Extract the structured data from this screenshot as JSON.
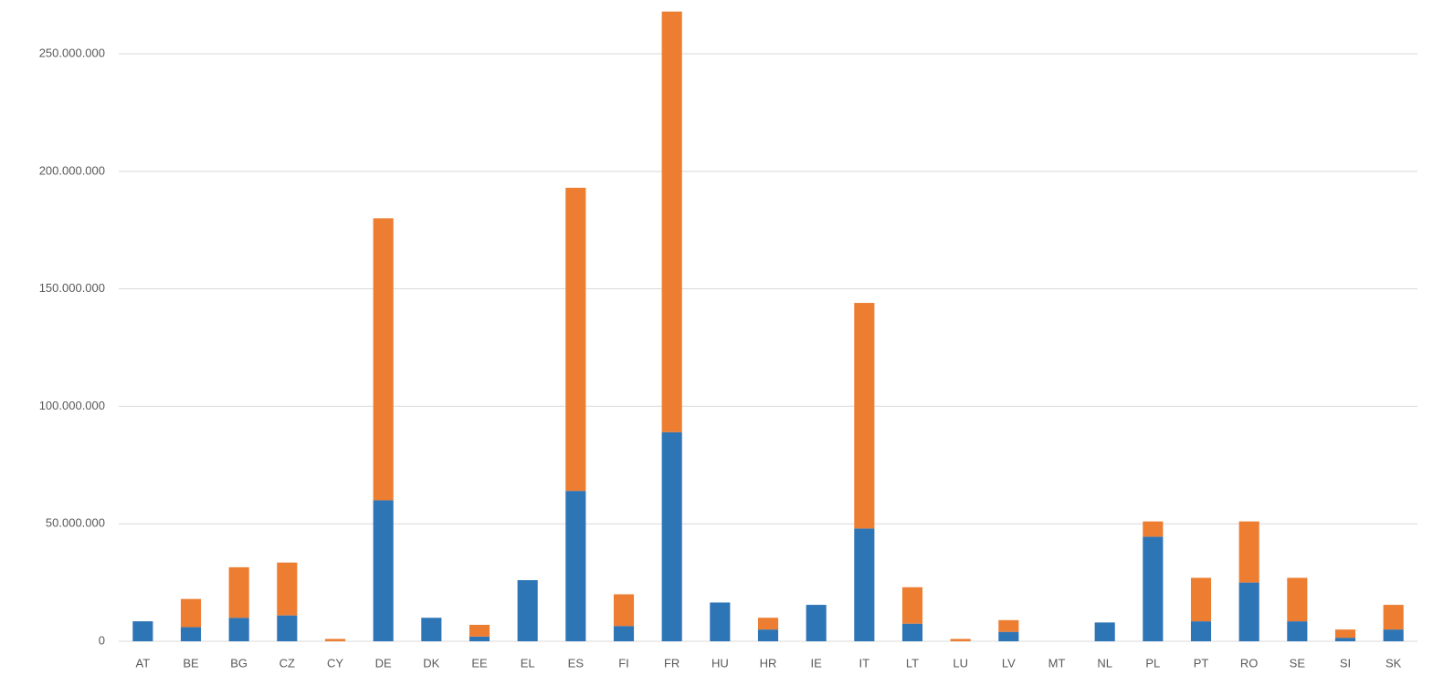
{
  "chart_data": {
    "type": "stacked-bar",
    "categories": [
      "AT",
      "BE",
      "BG",
      "CZ",
      "CY",
      "DE",
      "DK",
      "EE",
      "EL",
      "ES",
      "FI",
      "FR",
      "HU",
      "HR",
      "IE",
      "IT",
      "LT",
      "LU",
      "LV",
      "MT",
      "NL",
      "PL",
      "PT",
      "RO",
      "SE",
      "SI",
      "SK"
    ],
    "series": [
      {
        "color": "#2e75b6",
        "values": [
          8500000,
          6000000,
          10000000,
          11000000,
          0,
          60000000,
          10000000,
          2000000,
          26000000,
          64000000,
          6500000,
          89000000,
          16500000,
          5000000,
          15500000,
          48000000,
          7500000,
          0,
          4000000,
          0,
          8000000,
          44500000,
          8500000,
          25000000,
          8500000,
          1500000,
          5000000
        ]
      },
      {
        "color": "#ed7d31",
        "values": [
          0,
          12000000,
          21500000,
          22500000,
          1000000,
          120000000,
          0,
          5000000,
          0,
          129000000,
          13500000,
          179000000,
          0,
          5000000,
          0,
          96000000,
          15500000,
          1000000,
          5000000,
          0,
          0,
          6500000,
          18500000,
          26000000,
          18500000,
          3500000,
          10500000
        ]
      }
    ],
    "ylim": [
      0,
      270000000
    ],
    "yticks": [
      0,
      {
        "value": 50000000,
        "label": "50.000.000"
      },
      {
        "value": 100000000,
        "label": "100.000.000"
      },
      {
        "value": 150000000,
        "label": "150.000.000"
      },
      {
        "value": 200000000,
        "label": "200.000.000"
      },
      {
        "value": 250000000,
        "label": "250.000.000"
      }
    ],
    "grid": true
  }
}
